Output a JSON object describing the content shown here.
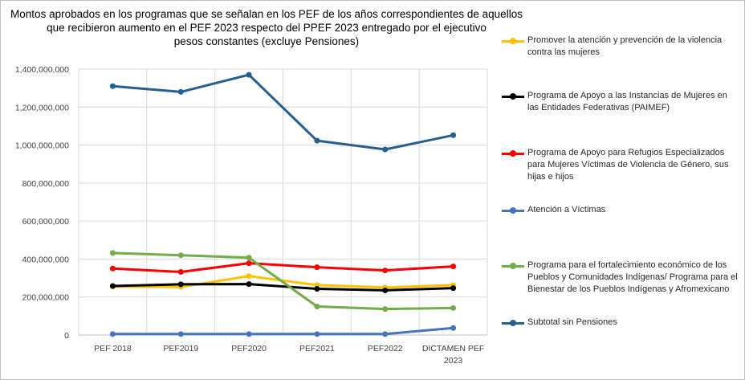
{
  "chart_data": {
    "type": "line",
    "title_lines": [
      "Montos aprobados en los programas que se señalan en los PEF de los años correspondientes de aquellos",
      "que recibieron aumento en el PEF 2023 respecto del PPEF 2023 entregado por el ejecutivo",
      "pesos constantes (excluye Pensiones)"
    ],
    "categories": [
      "PEF 2018",
      "PEF2019",
      "PEF2020",
      "PEF2021",
      "PEF2022",
      "DICTAMEN PEF 2023"
    ],
    "category_lines": [
      [
        "PEF 2018"
      ],
      [
        "PEF2019"
      ],
      [
        "PEF2020"
      ],
      [
        "PEF2021"
      ],
      [
        "PEF2022"
      ],
      [
        "DICTAMEN PEF",
        "2023"
      ]
    ],
    "ylim": [
      0,
      1400000000
    ],
    "yticks": [
      0,
      200000000,
      400000000,
      600000000,
      800000000,
      1000000000,
      1200000000,
      1400000000
    ],
    "ytick_labels": [
      "0",
      "200,000,000",
      "400,000,000",
      "600,000,000",
      "800,000,000",
      "1,000,000,000",
      "1,200,000,000",
      "1,400,000,000"
    ],
    "grid": true,
    "legend_position": "right",
    "series": [
      {
        "name": "Promover la atención y prevención de la violencia contra las mujeres",
        "color": "#ffc000",
        "values": [
          255000000,
          253000000,
          310000000,
          263000000,
          250000000,
          263000000
        ]
      },
      {
        "name": "Programa de Apoyo a las Instancias de Mujeres en las Entidades Federativas (PAIMEF)",
        "color": "#000000",
        "values": [
          258000000,
          267000000,
          268000000,
          243000000,
          235000000,
          247000000
        ]
      },
      {
        "name": "Programa de Apoyo para Refugios Especializados para Mujeres Víctimas de Violencia de Género, sus hijas e hijos",
        "color": "#ff0000",
        "values": [
          350000000,
          332000000,
          378000000,
          357000000,
          340000000,
          361000000
        ]
      },
      {
        "name": "Atención a Víctimas",
        "color": "#4472c4",
        "values": [
          5000000,
          5000000,
          5000000,
          5000000,
          5000000,
          37000000
        ]
      },
      {
        "name": "Programa para el fortalecimiento económico de los Pueblos y Comunidades Indígenas/ Programa para el Bienestar de los Pueblos Indígenas y Afromexicano",
        "color": "#70ad47",
        "values": [
          432000000,
          420000000,
          407000000,
          150000000,
          137000000,
          142000000
        ]
      },
      {
        "name": "Subtotal sin Pensiones",
        "color": "#255e91",
        "values": [
          1310000000,
          1280000000,
          1370000000,
          1023000000,
          977000000,
          1052000000
        ]
      }
    ]
  }
}
